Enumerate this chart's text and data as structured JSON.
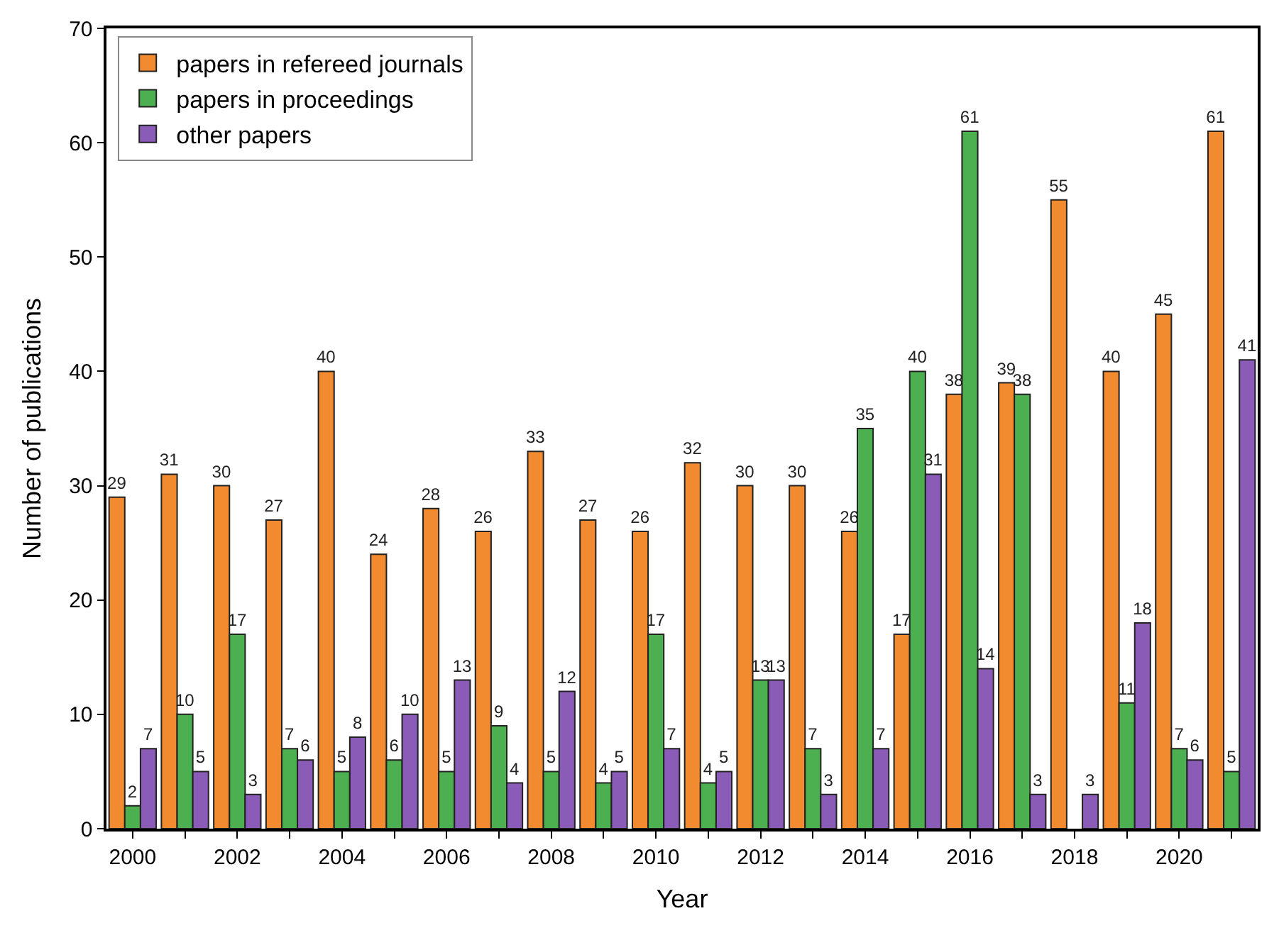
{
  "chart_data": {
    "type": "bar",
    "xlabel": "Year",
    "ylabel": "Number of publications",
    "x": [
      2000,
      2001,
      2002,
      2003,
      2004,
      2005,
      2006,
      2007,
      2008,
      2009,
      2010,
      2011,
      2012,
      2013,
      2014,
      2015,
      2016,
      2017,
      2018,
      2019,
      2020,
      2021
    ],
    "series": [
      {
        "name": "papers in refereed journals",
        "color": "#f28a30",
        "values": [
          29,
          31,
          30,
          27,
          40,
          24,
          28,
          26,
          33,
          27,
          26,
          32,
          30,
          30,
          26,
          17,
          38,
          39,
          55,
          40,
          45,
          61
        ]
      },
      {
        "name": "papers in proceedings",
        "color": "#4caf50",
        "values": [
          2,
          10,
          17,
          7,
          5,
          6,
          5,
          9,
          5,
          4,
          17,
          4,
          13,
          7,
          35,
          40,
          61,
          38,
          null,
          11,
          7,
          5
        ]
      },
      {
        "name": "other papers",
        "color": "#8a5cb8",
        "values": [
          7,
          5,
          3,
          6,
          8,
          10,
          13,
          4,
          12,
          5,
          7,
          5,
          13,
          3,
          7,
          31,
          14,
          3,
          3,
          18,
          6,
          41
        ]
      }
    ],
    "xlim": [
      1999.5,
      2021.5
    ],
    "xticks": [
      2000,
      {
        "value": 2001,
        "label": null
      },
      2002,
      {
        "value": 2003,
        "label": null
      },
      2004,
      {
        "value": 2005,
        "label": null
      },
      2006,
      {
        "value": 2007,
        "label": null
      },
      2008,
      {
        "value": 2009,
        "label": null
      },
      2010,
      {
        "value": 2011,
        "label": null
      },
      2012,
      {
        "value": 2013,
        "label": null
      },
      2014,
      {
        "value": 2015,
        "label": null
      },
      2016,
      {
        "value": 2017,
        "label": null
      },
      2018,
      {
        "value": 2019,
        "label": null
      },
      2020,
      {
        "value": 2021,
        "label": null
      }
    ],
    "ylim": [
      0,
      70
    ],
    "yticks": [
      0,
      10,
      20,
      30,
      40,
      50,
      60,
      70
    ],
    "data_labels": true,
    "legend": "top left"
  }
}
